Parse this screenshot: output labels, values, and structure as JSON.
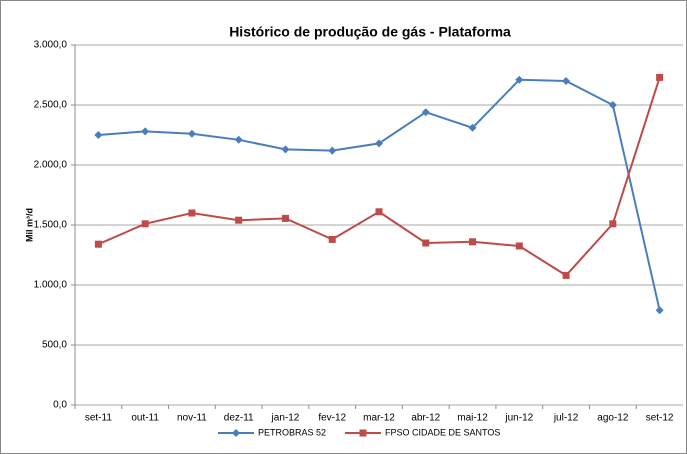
{
  "chart_data": {
    "type": "line",
    "title": "Histórico de produção de gás - Plataforma",
    "y_label": "Mil m³/d",
    "categories": [
      "set-11",
      "out-11",
      "nov-11",
      "dez-11",
      "jan-12",
      "fev-12",
      "mar-12",
      "abr-12",
      "mai-12",
      "jun-12",
      "jul-12",
      "ago-12",
      "set-12"
    ],
    "series": [
      {
        "name": "PETROBRAS 52",
        "color": "#4a7ebb",
        "marker": "diamond",
        "values": [
          2250,
          2280,
          2260,
          2210,
          2130,
          2120,
          2180,
          2440,
          2310,
          2710,
          2700,
          2500,
          790
        ]
      },
      {
        "name": "FPSO CIDADE DE SANTOS",
        "color": "#be4b48",
        "marker": "square",
        "values": [
          1340,
          1510,
          1600,
          1540,
          1555,
          1380,
          1610,
          1350,
          1360,
          1325,
          1080,
          1510,
          2730
        ]
      }
    ],
    "ylim": [
      0,
      3000
    ],
    "yticks": [
      {
        "value": 0,
        "label": "0,0"
      },
      {
        "value": 500,
        "label": "500,0"
      },
      {
        "value": 1000,
        "label": "1.000,0"
      },
      {
        "value": 1500,
        "label": "1.500,0"
      },
      {
        "value": 2000,
        "label": "2.000,0"
      },
      {
        "value": 2500,
        "label": "2.500,0"
      },
      {
        "value": 3000,
        "label": "3.000,0"
      }
    ],
    "grid": true,
    "legend": "bottom"
  }
}
